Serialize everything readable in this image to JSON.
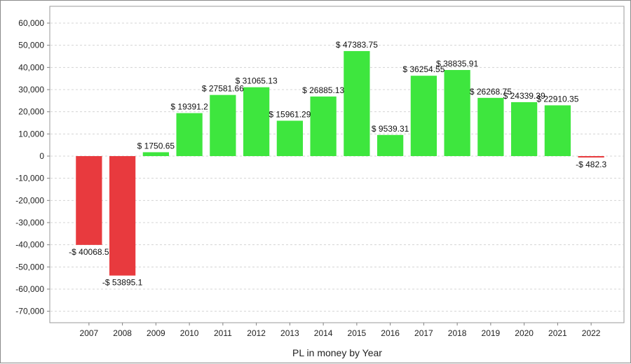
{
  "chart_data": {
    "type": "bar",
    "xlabel": "PL in money by Year",
    "ylabel": "",
    "ylim": [
      -75000,
      65000
    ],
    "yticks": [
      60000,
      50000,
      40000,
      30000,
      20000,
      10000,
      0,
      -10000,
      -20000,
      -30000,
      -40000,
      -50000,
      -60000,
      -70000
    ],
    "ytick_labels": [
      "60,000",
      "50,000",
      "40,000",
      "30,000",
      "20,000",
      "10,000",
      "0",
      "-10,000",
      "-20,000",
      "-30,000",
      "-40,000",
      "-50,000",
      "-60,000",
      "-70,000"
    ],
    "grid": true,
    "colors": {
      "positive": "#3ee63e",
      "negative": "#e83a3e"
    },
    "categories": [
      "2007",
      "2008",
      "2009",
      "2010",
      "2011",
      "2012",
      "2013",
      "2014",
      "2015",
      "2016",
      "2017",
      "2018",
      "2019",
      "2020",
      "2021",
      "2022"
    ],
    "values": [
      -40068.5,
      -53895.1,
      1750.65,
      19391.2,
      27581.66,
      31065.13,
      15961.29,
      26885.13,
      47383.75,
      9539.31,
      36254.55,
      38835.91,
      26268.75,
      24339.39,
      22910.35,
      -482.3
    ],
    "labels": [
      "-$ 40068.5",
      "-$ 53895.1",
      "$ 1750.65",
      "$ 19391.2",
      "$ 27581.66",
      "$ 31065.13",
      "$ 15961.29",
      "$ 26885.13",
      "$ 47383.75",
      "$ 9539.31",
      "$ 36254.55",
      "$ 38835.91",
      "$ 26268.75",
      "$ 24339.39",
      "$ 22910.35",
      "-$ 482.3"
    ]
  }
}
